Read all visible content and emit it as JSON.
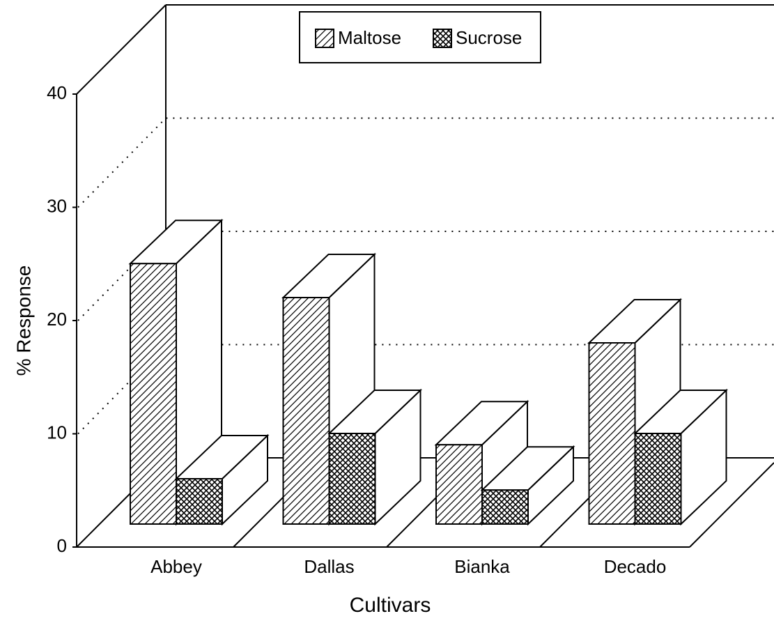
{
  "chart_data": {
    "type": "bar3d",
    "ylabel": "% Response",
    "xlabel": "Cultivars",
    "categories": [
      "Abbey",
      "Dallas",
      "Bianka",
      "Decado"
    ],
    "series": [
      {
        "name": "Maltose",
        "pattern": "diagonal",
        "color": "#000000",
        "values": [
          23,
          20,
          7,
          16
        ]
      },
      {
        "name": "Sucrose",
        "pattern": "crosshatch",
        "color": "#000000",
        "values": [
          4,
          8,
          3,
          8
        ]
      }
    ],
    "ylim": [
      0,
      40
    ],
    "yticks": [
      0,
      10,
      20,
      30,
      40
    ],
    "grid": true,
    "legend": "top"
  }
}
